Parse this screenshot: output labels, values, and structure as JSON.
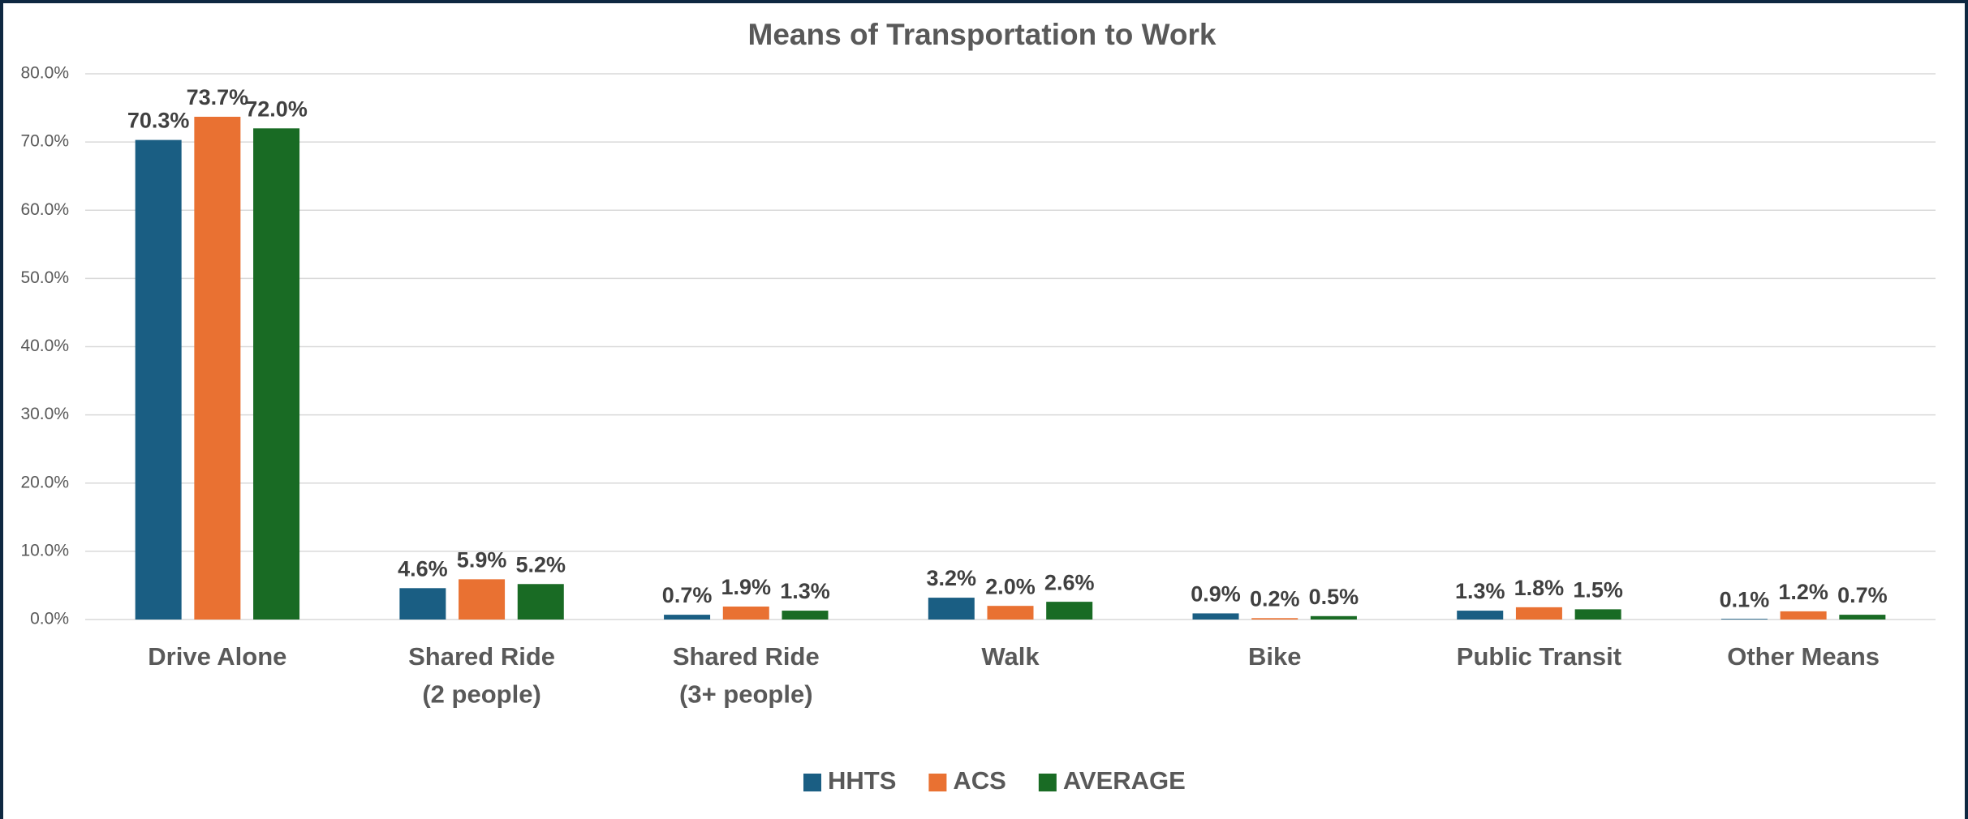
{
  "chart_data": {
    "type": "bar",
    "title": "Means of Transportation to Work",
    "categories": [
      "Drive Alone",
      "Shared Ride\n(2 people)",
      "Shared Ride\n(3+ people)",
      "Walk",
      "Bike",
      "Public Transit",
      "Other Means"
    ],
    "series": [
      {
        "name": "HHTS",
        "color": "#1a5e83",
        "values": [
          70.3,
          4.6,
          0.7,
          3.2,
          0.9,
          1.3,
          0.1
        ],
        "value_labels": [
          "70.3%",
          "4.6%",
          "0.7%",
          "3.2%",
          "0.9%",
          "1.3%",
          "0.1%"
        ]
      },
      {
        "name": "ACS",
        "color": "#e97132",
        "values": [
          73.7,
          5.9,
          1.9,
          2.0,
          0.2,
          1.8,
          1.2
        ],
        "value_labels": [
          "73.7%",
          "5.9%",
          "1.9%",
          "2.0%",
          "0.2%",
          "1.8%",
          "1.2%"
        ]
      },
      {
        "name": "AVERAGE",
        "color": "#196b24",
        "values": [
          72.0,
          5.2,
          1.3,
          2.6,
          0.5,
          1.5,
          0.7
        ],
        "value_labels": [
          "72.0%",
          "5.2%",
          "1.3%",
          "2.6%",
          "0.5%",
          "1.5%",
          "0.7%"
        ]
      }
    ],
    "ylim": [
      0,
      80
    ],
    "yticks": [
      {
        "value": 0,
        "label": "0.0%"
      },
      {
        "value": 10,
        "label": "10.0%"
      },
      {
        "value": 20,
        "label": "20.0%"
      },
      {
        "value": 30,
        "label": "30.0%"
      },
      {
        "value": 40,
        "label": "40.0%"
      },
      {
        "value": 50,
        "label": "50.0%"
      },
      {
        "value": 60,
        "label": "60.0%"
      },
      {
        "value": 70,
        "label": "70.0%"
      },
      {
        "value": 80,
        "label": "80.0%"
      }
    ],
    "grid": true,
    "legend": "bottom"
  }
}
